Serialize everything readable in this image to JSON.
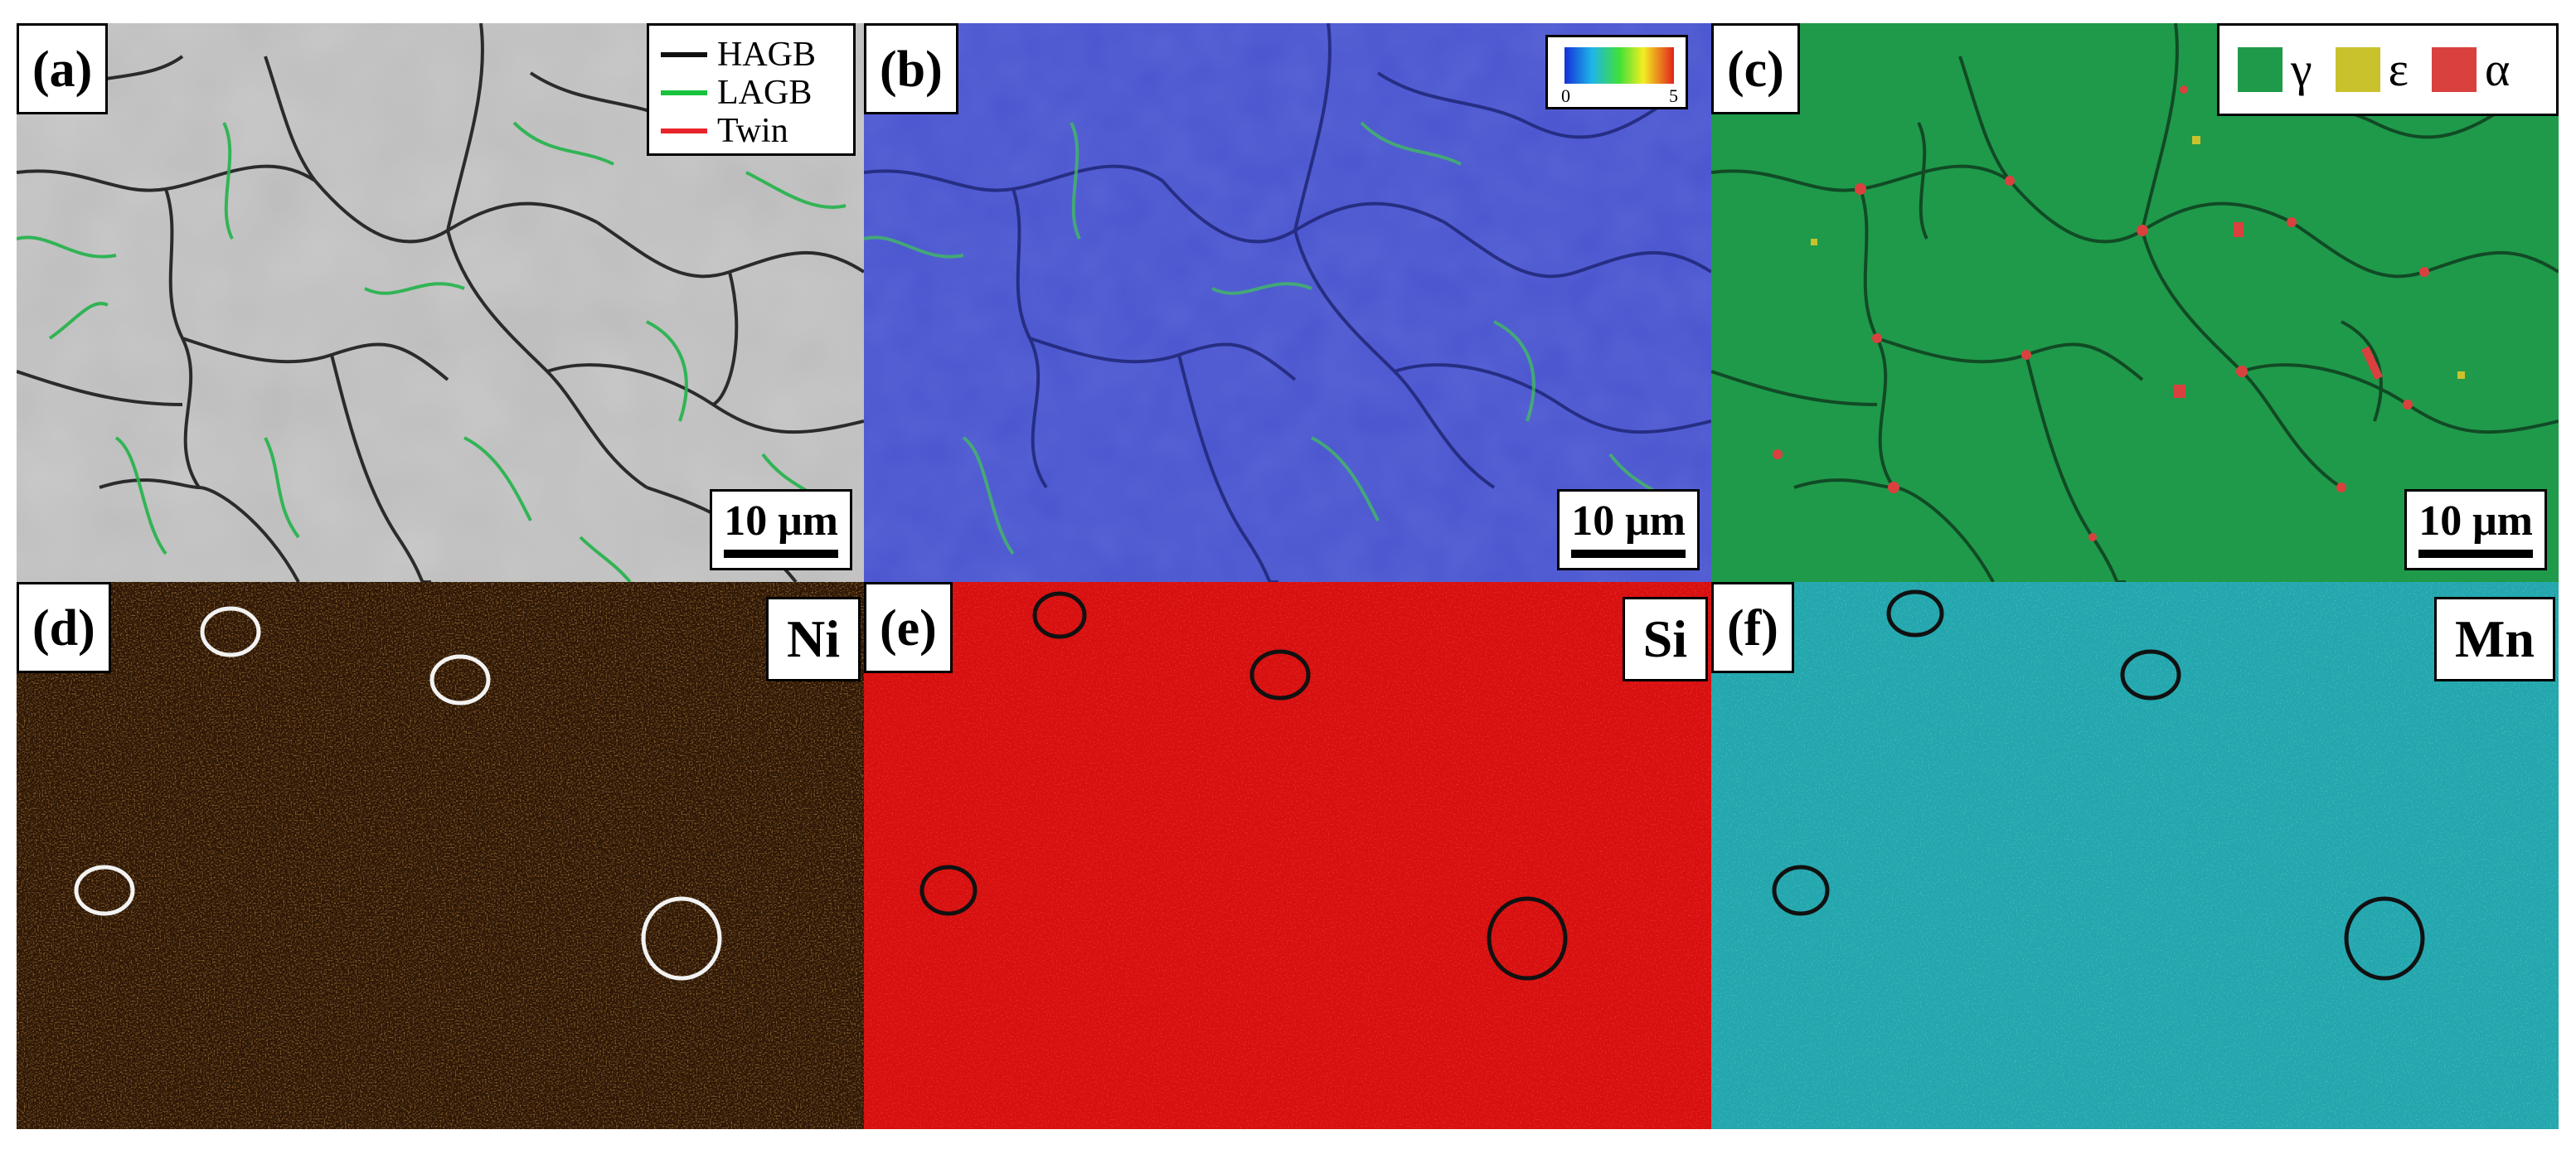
{
  "panels": [
    {
      "label": "(a)",
      "scale_bar": "10 μm"
    },
    {
      "label": "(b)",
      "scale_bar": "10 μm"
    },
    {
      "label": "(c)",
      "scale_bar": "10 μm"
    },
    {
      "label": "(d)",
      "element": "Ni"
    },
    {
      "label": "(e)",
      "element": "Si"
    },
    {
      "label": "(f)",
      "element": "Mn"
    }
  ],
  "legend_a": {
    "items": [
      {
        "label": "HAGB",
        "color": "#111111"
      },
      {
        "label": "LAGB",
        "color": "#19c23c"
      },
      {
        "label": "Twin",
        "color": "#e8232b"
      }
    ]
  },
  "legend_b": {
    "min": "0",
    "max": "5"
  },
  "legend_c": {
    "items": [
      {
        "symbol": "γ",
        "color": "#1f9a4a"
      },
      {
        "symbol": "ε",
        "color": "#c9c22d"
      },
      {
        "symbol": "α",
        "color": "#d9413f"
      }
    ]
  },
  "colors": {
    "band_contrast_bg": "#bdbdbd",
    "kam_bg": "#4a55cf",
    "phase_bg": "#1f9a4a",
    "ni_bg": "#2b1505",
    "si_bg": "#d80f0f",
    "mn_bg": "#23a6ad"
  }
}
